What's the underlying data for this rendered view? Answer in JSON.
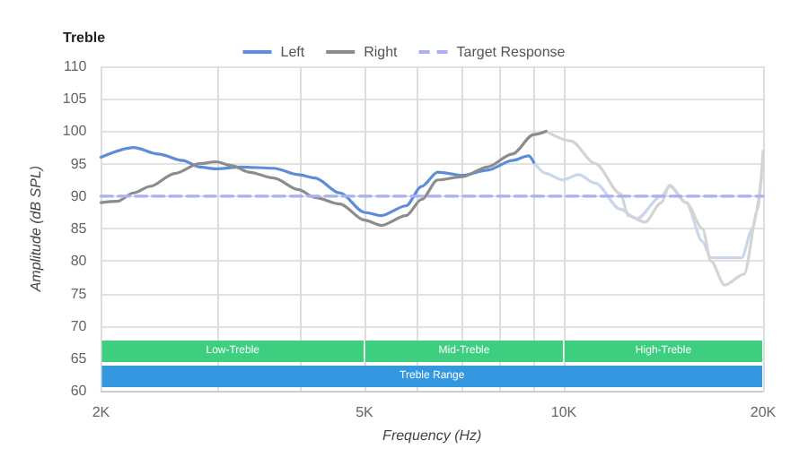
{
  "chart_data": {
    "type": "line",
    "title": "Treble",
    "xlabel": "Frequency (Hz)",
    "ylabel": "Amplitude (dB SPL)",
    "log": "x",
    "xlim": [
      2000,
      20000
    ],
    "xticks": [
      {
        "value": 2000,
        "label": "2K"
      },
      {
        "value": 3000,
        "label": null
      },
      {
        "value": 4000,
        "label": null
      },
      {
        "value": 5000,
        "label": "5K"
      },
      {
        "value": 6000,
        "label": null
      },
      {
        "value": 7000,
        "label": null
      },
      {
        "value": 8000,
        "label": null
      },
      {
        "value": 9000,
        "label": null
      },
      {
        "value": 10000,
        "label": "10K"
      },
      {
        "value": 20000,
        "label": "20K"
      }
    ],
    "ylim": [
      60,
      110
    ],
    "yticks": [
      60,
      65,
      70,
      75,
      80,
      85,
      90,
      95,
      100,
      105,
      110
    ],
    "grid": true,
    "legend": "top",
    "marker": "none",
    "line_style": "solid",
    "series": [
      {
        "name": "Left",
        "color": "#5b8ed6",
        "x": [
          2000,
          2241,
          2441,
          2659,
          2816,
          2982,
          3249,
          3646,
          3974,
          4209,
          4588,
          5003,
          5297,
          5775,
          6100,
          6450,
          7035,
          7670,
          8360,
          8850,
          9010
        ],
        "values": [
          96,
          97.5,
          96.5,
          95.5,
          94.5,
          94.2,
          94.5,
          94.3,
          93.3,
          92.8,
          90.5,
          87.5,
          87,
          88.5,
          91.5,
          93.7,
          93.2,
          94,
          95.5,
          96.2,
          95.2
        ]
      },
      {
        "name": "Right",
        "color": "#8c8c8c",
        "x": [
          2000,
          2116,
          2241,
          2372,
          2584,
          2816,
          2982,
          3157,
          3343,
          3646,
          3974,
          4209,
          4588,
          5003,
          5297,
          5775,
          6100,
          6450,
          7035,
          7670,
          8360,
          9010,
          9400
        ],
        "values": [
          89,
          89.2,
          90.5,
          91.5,
          93.5,
          95,
          95.3,
          94.7,
          93.7,
          92.8,
          91,
          89.8,
          88.8,
          86.3,
          85.5,
          87,
          89.5,
          92.5,
          93,
          94.5,
          96.5,
          99.5,
          100
        ]
      },
      {
        "color": "#c9d6ec",
        "x": [
          9010,
          9400,
          9950,
          10530,
          11160,
          12170,
          12880,
          14040,
          14450,
          15300,
          16200,
          16680,
          18560,
          19270,
          20000
        ],
        "values": [
          95.2,
          93.5,
          92.5,
          93.3,
          92,
          88,
          86.5,
          90,
          91.5,
          89,
          83,
          80.5,
          80.5,
          85,
          95
        ]
      },
      {
        "color": "#d4d4d4",
        "x": [
          9400,
          10250,
          11160,
          12170,
          12520,
          13260,
          14040,
          14450,
          15300,
          16200,
          16680,
          17500,
          18720,
          19650,
          20000
        ],
        "values": [
          100,
          98.5,
          95,
          90.4,
          87,
          86,
          89,
          91.7,
          89,
          85,
          80,
          76.3,
          78,
          88,
          97
        ]
      },
      {
        "name": "Target Response",
        "color": "#aab0f2",
        "line_style": "dashed",
        "x": [
          2000,
          20000
        ],
        "values": [
          90,
          90
        ]
      }
    ],
    "bands": [
      {
        "axis": "x",
        "from": 2000,
        "to": 5000,
        "label": "Low-Treble",
        "color": "#3dcf7f"
      },
      {
        "axis": "x",
        "from": 5000,
        "to": 10000,
        "label": "Mid-Treble",
        "color": "#3dcf7f"
      },
      {
        "axis": "x",
        "from": 10000,
        "to": 20000,
        "label": "High-Treble",
        "color": "#3dcf7f"
      },
      {
        "axis": "x",
        "from": 2000,
        "to": 20000,
        "label": "Treble Range",
        "color": "#3498e0"
      }
    ]
  }
}
